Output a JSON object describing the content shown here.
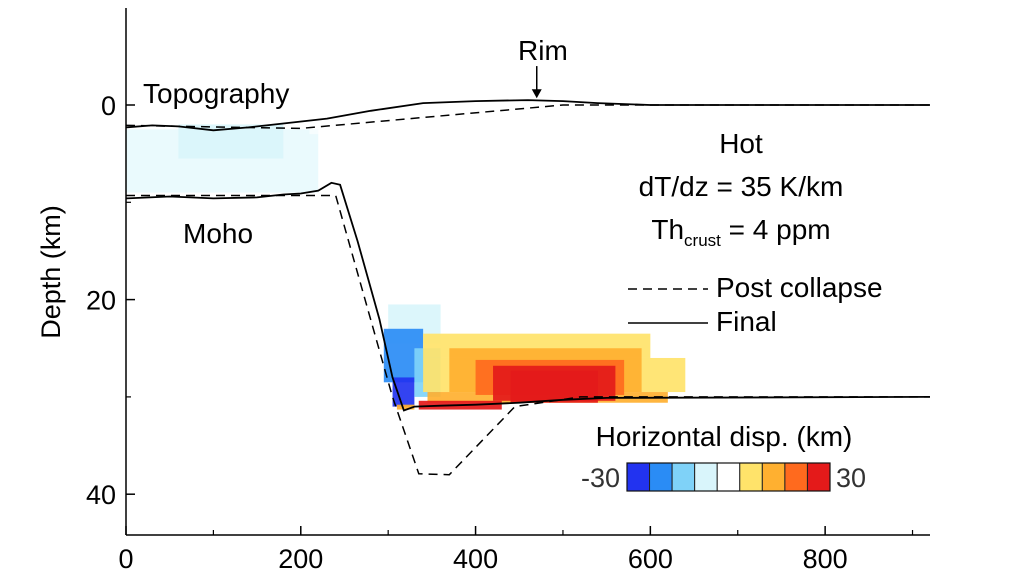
{
  "chart_data": {
    "type": "line",
    "xlabel": "",
    "ylabel": "Depth (km)",
    "xlim": [
      0,
      920
    ],
    "ylim": [
      -10,
      45
    ],
    "x_ticks": [
      "0",
      "200",
      "400",
      "600",
      "800"
    ],
    "x_tick_values": [
      0,
      200,
      400,
      600,
      800
    ],
    "y_ticks": [
      "0",
      "20",
      "40"
    ],
    "y_tick_values": [
      0,
      20,
      40
    ],
    "grid": false,
    "legend_placement": "right",
    "legend": [
      {
        "name": "Post collapse",
        "style": "dashed"
      },
      {
        "name": "Final",
        "style": "solid"
      }
    ],
    "annotations": {
      "topography": "Topography",
      "rim": "Rim",
      "moho": "Moho",
      "case_name": "Hot",
      "gradient": "dT/dz = 35 K/km",
      "th_base": "Th",
      "th_sub": "crust",
      "th_value": " = 4 ppm"
    },
    "rim_arrow": {
      "x": 470,
      "from_depth": -4,
      "to_depth": -0.7
    },
    "colorbar": {
      "title": "Horizontal disp. (km)",
      "min": -30,
      "max": 30,
      "min_label": "-30",
      "max_label": "30",
      "colors": [
        "#2233f0",
        "#2a8cf5",
        "#7fd2f8",
        "#d9f5fb",
        "#ffffff",
        "#ffe36a",
        "#ffb030",
        "#ff6a1e",
        "#e41a1a"
      ]
    },
    "series": [
      {
        "style": "dashed",
        "segments": [
          [
            [
              0,
              2.1
            ],
            [
              200,
              2.4
            ],
            [
              500,
              0
            ],
            [
              920,
              0
            ]
          ],
          [
            [
              0,
              9.3
            ],
            [
              240,
              9.3
            ],
            [
              305,
              30
            ],
            [
              335,
              37.9
            ],
            [
              370,
              38.0
            ],
            [
              445,
              31.0
            ],
            [
              520,
              30.0
            ],
            [
              920,
              30.0
            ]
          ]
        ]
      },
      {
        "style": "solid",
        "segments": [
          [
            [
              0,
              2.3
            ],
            [
              30,
              2.1
            ],
            [
              60,
              2.2
            ],
            [
              100,
              2.6
            ],
            [
              140,
              2.3
            ],
            [
              180,
              1.9
            ],
            [
              230,
              1.4
            ],
            [
              280,
              0.6
            ],
            [
              340,
              -0.2
            ],
            [
              400,
              -0.4
            ],
            [
              460,
              -0.5
            ],
            [
              500,
              -0.4
            ],
            [
              540,
              -0.2
            ],
            [
              600,
              0
            ],
            [
              920,
              0
            ]
          ],
          [
            [
              0,
              9.6
            ],
            [
              50,
              9.4
            ],
            [
              100,
              9.6
            ],
            [
              150,
              9.5
            ],
            [
              180,
              9.2
            ],
            [
              200,
              9.1
            ],
            [
              220,
              8.8
            ],
            [
              235,
              8.0
            ],
            [
              245,
              8.2
            ],
            [
              265,
              14.0
            ],
            [
              290,
              22.0
            ],
            [
              305,
              28.0
            ],
            [
              318,
              31.4
            ],
            [
              330,
              31.0
            ],
            [
              360,
              30.9
            ],
            [
              400,
              30.8
            ],
            [
              450,
              30.6
            ],
            [
              500,
              30.3
            ],
            [
              550,
              30.1
            ],
            [
              920,
              30.0
            ]
          ]
        ]
      }
    ],
    "heatmap_cells": [
      {
        "x": [
          0,
          220
        ],
        "y": [
          2.5,
          9.0
        ],
        "v": -4
      },
      {
        "x": [
          60,
          180
        ],
        "y": [
          2.0,
          5.5
        ],
        "v": -6
      },
      {
        "x": [
          0,
          40
        ],
        "y": [
          -9.5,
          -7.5
        ],
        "v": -2
      },
      {
        "x": [
          210,
          600
        ],
        "y": [
          0.5,
          3.0
        ],
        "v": -2
      },
      {
        "x": [
          360,
          575
        ],
        "y": [
          14.0,
          22.0
        ],
        "v": -3
      },
      {
        "x": [
          430,
          560
        ],
        "y": [
          13.5,
          16.5
        ],
        "v": -2
      },
      {
        "x": [
          300,
          360
        ],
        "y": [
          20.5,
          24.5
        ],
        "v": -10
      },
      {
        "x": [
          295,
          340
        ],
        "y": [
          23.0,
          28.5
        ],
        "v": -22
      },
      {
        "x": [
          305,
          330
        ],
        "y": [
          28.0,
          31.0
        ],
        "v": -30
      },
      {
        "x": [
          330,
          360
        ],
        "y": [
          25.0,
          30.0
        ],
        "v": -14
      },
      {
        "x": [
          360,
          430
        ],
        "y": [
          22.0,
          24.0
        ],
        "v": 2
      },
      {
        "x": [
          340,
          600
        ],
        "y": [
          23.5,
          26.0
        ],
        "v": 6
      },
      {
        "x": [
          340,
          640
        ],
        "y": [
          26.0,
          29.5
        ],
        "v": 10
      },
      {
        "x": [
          345,
          620
        ],
        "y": [
          29.5,
          30.6
        ],
        "v": 12
      },
      {
        "x": [
          370,
          590
        ],
        "y": [
          25.0,
          29.5
        ],
        "v": 16
      },
      {
        "x": [
          400,
          570
        ],
        "y": [
          26.2,
          29.8
        ],
        "v": 22
      },
      {
        "x": [
          420,
          560
        ],
        "y": [
          26.8,
          30.4
        ],
        "v": 27
      },
      {
        "x": [
          440,
          540
        ],
        "y": [
          27.3,
          30.6
        ],
        "v": 30
      },
      {
        "x": [
          335,
          430
        ],
        "y": [
          30.4,
          31.3
        ],
        "v": 30
      },
      {
        "x": [
          310,
          330
        ],
        "y": [
          30.8,
          31.3
        ],
        "v": 14
      }
    ]
  }
}
